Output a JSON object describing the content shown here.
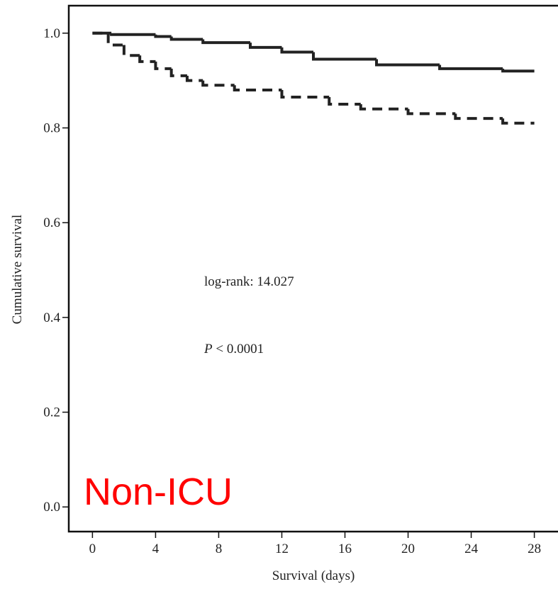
{
  "chart_data": {
    "type": "step",
    "y_label": "Cumulative survival",
    "x_label": "Survival (days)",
    "annotations": {
      "log_rank": "log-rank: 14.027",
      "p_symbol": "P",
      "p_text": "< 0.0001",
      "group": "Non-ICU"
    },
    "xlim": [
      -1.5,
      29.5
    ],
    "ylim": [
      -0.052,
      1.058
    ],
    "xticks": [
      0,
      4,
      8,
      12,
      16,
      20,
      24,
      28
    ],
    "yticks": [
      {
        "value": 0,
        "label": "0.0"
      },
      0.2,
      0.4,
      0.6,
      0.8,
      {
        "value": 1,
        "label": "1.0"
      }
    ],
    "series": [
      {
        "color": "#222222",
        "dash": false,
        "x": [
          0,
          1.2,
          4,
          5,
          7,
          10,
          12,
          14,
          18,
          22,
          26,
          28
        ],
        "values": [
          1.0,
          0.997,
          0.993,
          0.987,
          0.98,
          0.97,
          0.96,
          0.945,
          0.933,
          0.925,
          0.92,
          0.92
        ]
      },
      {
        "color": "#222222",
        "dash": true,
        "x": [
          0,
          1,
          2,
          3,
          4,
          5,
          6,
          7,
          9,
          12,
          15,
          17,
          20,
          23,
          26,
          28
        ],
        "values": [
          1.0,
          0.975,
          0.953,
          0.94,
          0.925,
          0.91,
          0.9,
          0.89,
          0.88,
          0.865,
          0.85,
          0.84,
          0.83,
          0.82,
          0.81,
          0.81
        ]
      }
    ]
  }
}
